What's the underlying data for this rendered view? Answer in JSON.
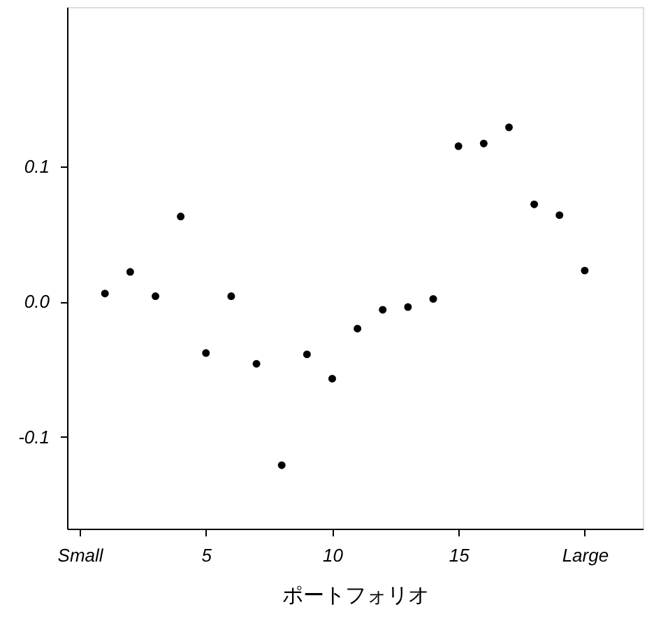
{
  "chart_data": {
    "type": "scatter",
    "xlabel": "ポートフォリオ",
    "x": [
      1,
      2,
      3,
      4,
      5,
      6,
      7,
      8,
      9,
      10,
      11,
      12,
      13,
      14,
      15,
      16,
      17,
      18,
      19,
      20
    ],
    "series": [
      {
        "color": "#000000",
        "values": [
          0.006,
          0.022,
          0.004,
          0.063,
          -0.038,
          0.004,
          -0.046,
          -0.121,
          -0.039,
          -0.057,
          -0.02,
          -0.006,
          -0.004,
          0.002,
          0.115,
          0.117,
          0.129,
          0.072,
          0.064,
          0.023
        ]
      }
    ],
    "xlim": [
      -0.5,
      22.3
    ],
    "xticks": [
      {
        "value": 0,
        "label": "Small"
      },
      5,
      10,
      15,
      {
        "value": 20,
        "label": "Large"
      }
    ],
    "ylim": [
      -0.168,
      0.218
    ],
    "yticks": [
      {
        "value": -0.1,
        "label": "-0.1"
      },
      {
        "value": 0,
        "label": "0.0"
      },
      0.1
    ],
    "marker": "circle",
    "grid": false
  }
}
